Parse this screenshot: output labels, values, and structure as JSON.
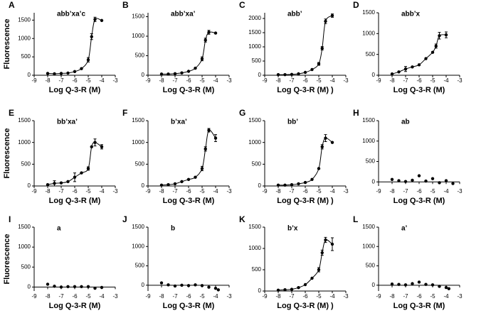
{
  "chart_data": [
    {
      "type": "scatter",
      "title": "A",
      "annotation": "abb’xa’c",
      "ylabel": "Fluorescence",
      "xlabel": "Log Q-3-R (M)",
      "fit": true,
      "color": "#000000",
      "x": [
        -8,
        -7.5,
        -7,
        -6.5,
        -6,
        -5.5,
        -5,
        -4.75,
        -4.5,
        -4
      ],
      "values": [
        50,
        40,
        50,
        60,
        100,
        180,
        420,
        1050,
        1520,
        1490
      ],
      "errors": [
        null,
        null,
        null,
        null,
        null,
        null,
        60,
        80,
        60,
        null
      ],
      "xlim": [
        -9,
        -3
      ],
      "xticks": [
        -9,
        -8,
        -7,
        -6,
        -5,
        -4,
        -3
      ],
      "ylim": [
        0,
        1700
      ],
      "yticks": [
        0,
        500,
        1000,
        1500
      ]
    },
    {
      "type": "scatter",
      "title": "B",
      "annotation": "abb’xa’",
      "xlabel": "Log Q-3-R (M)",
      "fit": true,
      "color": "#000000",
      "x": [
        -8,
        -7.5,
        -7,
        -6.5,
        -6,
        -5.5,
        -5,
        -4.75,
        -4.5,
        -4
      ],
      "values": [
        30,
        30,
        40,
        60,
        100,
        180,
        420,
        900,
        1100,
        1080
      ],
      "errors": [
        null,
        null,
        null,
        null,
        null,
        null,
        50,
        50,
        50,
        null
      ],
      "xlim": [
        -9,
        -3
      ],
      "xticks": [
        -9,
        -8,
        -7,
        -6,
        -5,
        -4,
        -3
      ],
      "ylim": [
        0,
        1600
      ],
      "yticks": [
        0,
        500,
        1000,
        1500
      ]
    },
    {
      "type": "scatter",
      "title": "C",
      "annotation": "abb’",
      "xlabel": "Log Q-3-R (M) )",
      "fit": true,
      "color": "#000000",
      "x": [
        -8,
        -7.5,
        -7,
        -6.5,
        -6,
        -5.5,
        -5,
        -4.75,
        -4.5,
        -4
      ],
      "values": [
        20,
        20,
        30,
        50,
        100,
        200,
        400,
        950,
        1900,
        2100
      ],
      "errors": [
        null,
        null,
        null,
        null,
        null,
        null,
        50,
        60,
        80,
        60
      ],
      "xlim": [
        -9,
        -3
      ],
      "xticks": [
        -9,
        -8,
        -7,
        -6,
        -5,
        -4,
        -3
      ],
      "ylim": [
        0,
        2200
      ],
      "yticks": [
        0,
        500,
        1000,
        1500,
        2000
      ]
    },
    {
      "type": "scatter",
      "title": "D",
      "annotation": "abb’x",
      "xlabel": "Log Q-3-R (M)",
      "fit": true,
      "color": "#000000",
      "x": [
        -8,
        -7.5,
        -7,
        -6.5,
        -6,
        -5.5,
        -5,
        -4.75,
        -4.5,
        -4
      ],
      "values": [
        30,
        80,
        150,
        200,
        250,
        400,
        550,
        700,
        950,
        970
      ],
      "errors": [
        null,
        null,
        60,
        null,
        null,
        null,
        null,
        50,
        80,
        70
      ],
      "xlim": [
        -9,
        -3
      ],
      "xticks": [
        -9,
        -8,
        -7,
        -6,
        -5,
        -4,
        -3
      ],
      "ylim": [
        0,
        1500
      ],
      "yticks": [
        0,
        500,
        1000,
        1500
      ]
    },
    {
      "type": "scatter",
      "title": "E",
      "annotation": "bb’xa’",
      "ylabel": "Fluorescence",
      "xlabel": "Log Q-3-R (M)",
      "fit": true,
      "color": "#000000",
      "x": [
        -8,
        -7.5,
        -7,
        -6.5,
        -6,
        -5.5,
        -5,
        -4.75,
        -4.5,
        -4
      ],
      "values": [
        30,
        60,
        70,
        100,
        200,
        300,
        400,
        900,
        1000,
        900
      ],
      "errors": [
        null,
        60,
        null,
        null,
        100,
        null,
        40,
        null,
        80,
        50
      ],
      "xlim": [
        -9,
        -3
      ],
      "xticks": [
        -9,
        -8,
        -7,
        -6,
        -5,
        -4,
        -3
      ],
      "ylim": [
        0,
        1500
      ],
      "yticks": [
        0,
        500,
        1000,
        1500
      ]
    },
    {
      "type": "scatter",
      "title": "F",
      "annotation": "b’xa’",
      "xlabel": "Log Q-3-R (M)",
      "fit": true,
      "color": "#000000",
      "x": [
        -8,
        -7.5,
        -7,
        -6.5,
        -6,
        -5.5,
        -5,
        -4.75,
        -4.5,
        -4
      ],
      "values": [
        20,
        30,
        50,
        100,
        150,
        200,
        400,
        850,
        1280,
        1100
      ],
      "errors": [
        null,
        null,
        null,
        null,
        null,
        null,
        50,
        50,
        40,
        80
      ],
      "xlim": [
        -9,
        -3
      ],
      "xticks": [
        -9,
        -8,
        -7,
        -6,
        -5,
        -4,
        -3
      ],
      "ylim": [
        0,
        1500
      ],
      "yticks": [
        0,
        500,
        1000,
        1500
      ]
    },
    {
      "type": "scatter",
      "title": "G",
      "annotation": "bb’",
      "xlabel": "Log Q-3-R (M) )",
      "fit": true,
      "color": "#000000",
      "x": [
        -8,
        -7.5,
        -7,
        -6.5,
        -6,
        -5.5,
        -5,
        -4.75,
        -4.5,
        -4
      ],
      "values": [
        20,
        20,
        30,
        50,
        80,
        150,
        400,
        900,
        1100,
        1000
      ],
      "errors": [
        null,
        null,
        null,
        null,
        null,
        null,
        null,
        50,
        80,
        null
      ],
      "xlim": [
        -9,
        -3
      ],
      "xticks": [
        -9,
        -8,
        -7,
        -6,
        -5,
        -4,
        -3
      ],
      "ylim": [
        0,
        1500
      ],
      "yticks": [
        0,
        500,
        1000,
        1500
      ]
    },
    {
      "type": "scatter",
      "title": "H",
      "annotation": "ab",
      "xlabel": "Log Q-3-R (M)",
      "fit": false,
      "color": "#000000",
      "x": [
        -8,
        -7.5,
        -7,
        -6.5,
        -6,
        -5.5,
        -5,
        -4.5,
        -4,
        -3.5
      ],
      "values": [
        60,
        30,
        10,
        40,
        150,
        20,
        80,
        -20,
        30,
        -40
      ],
      "xlim": [
        -9,
        -3
      ],
      "xticks": [
        -9,
        -8,
        -7,
        -6,
        -5,
        -4,
        -3
      ],
      "ylim": [
        -100,
        1500
      ],
      "yticks": [
        0,
        500,
        1000,
        1500
      ]
    },
    {
      "type": "scatter",
      "title": "I",
      "annotation": "a",
      "ylabel": "Fluorescence",
      "xlabel": "Log Q-3-R (M)",
      "fit": false,
      "color": "#000000",
      "x": [
        -8,
        -7.5,
        -7,
        -6.5,
        -6,
        -5.5,
        -5,
        -4.5,
        -4
      ],
      "values": [
        70,
        20,
        0,
        10,
        10,
        10,
        10,
        -30,
        -10
      ],
      "xlim": [
        -9,
        -3
      ],
      "xticks": [
        -9,
        -8,
        -7,
        -6,
        -5,
        -4,
        -3
      ],
      "ylim": [
        -100,
        1500
      ],
      "yticks": [
        0,
        500,
        1000,
        1500
      ]
    },
    {
      "type": "scatter",
      "title": "J",
      "annotation": "b",
      "xlabel": "Log Q-3-R (M)",
      "fit": false,
      "color": "#000000",
      "x": [
        -8,
        -7.5,
        -7,
        -6.5,
        -6,
        -5.5,
        -5,
        -4.5,
        -4,
        -3.8
      ],
      "values": [
        60,
        10,
        -20,
        0,
        -10,
        10,
        -10,
        -50,
        -80,
        -120
      ],
      "xlim": [
        -9,
        -3
      ],
      "xticks": [
        -9,
        -8,
        -7,
        -6,
        -5,
        -4,
        -3
      ],
      "ylim": [
        -150,
        1500
      ],
      "yticks": [
        0,
        500,
        1000,
        1500
      ]
    },
    {
      "type": "scatter",
      "title": "K",
      "annotation": "b’x",
      "xlabel": "Log Q-3-R (M) )",
      "fit": true,
      "color": "#000000",
      "x": [
        -8,
        -7.5,
        -7,
        -6.5,
        -6,
        -5.5,
        -5,
        -4.75,
        -4.5,
        -4
      ],
      "values": [
        20,
        30,
        40,
        80,
        150,
        300,
        500,
        900,
        1200,
        1100
      ],
      "errors": [
        null,
        null,
        null,
        null,
        null,
        null,
        50,
        60,
        60,
        150
      ],
      "xlim": [
        -9,
        -3
      ],
      "xticks": [
        -9,
        -8,
        -7,
        -6,
        -5,
        -4,
        -3
      ],
      "ylim": [
        0,
        1500
      ],
      "yticks": [
        0,
        500,
        1000,
        1500
      ]
    },
    {
      "type": "scatter",
      "title": "L",
      "annotation": "a’",
      "xlabel": "Log Q-3-R (M)",
      "fit": false,
      "color": "#000000",
      "x": [
        -8,
        -7.5,
        -7,
        -6.5,
        -6,
        -5.5,
        -5,
        -4.5,
        -4,
        -3.8
      ],
      "values": [
        30,
        20,
        10,
        40,
        80,
        20,
        10,
        -30,
        -60,
        -90
      ],
      "xlim": [
        -9,
        -3
      ],
      "xticks": [
        -9,
        -8,
        -7,
        -6,
        -5,
        -4,
        -3
      ],
      "ylim": [
        -150,
        1500
      ],
      "yticks": [
        0,
        500,
        1000,
        1500
      ]
    }
  ]
}
